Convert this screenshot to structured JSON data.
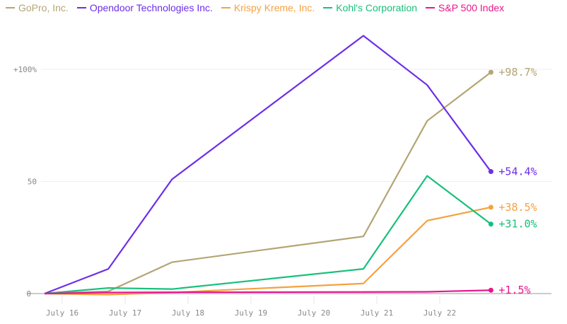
{
  "chart_data": {
    "type": "line",
    "title": "",
    "xlabel": "",
    "ylabel": "",
    "x_ticks": [
      "July 16",
      "July 17",
      "July 18",
      "July 19",
      "July 20",
      "July 21",
      "July 22"
    ],
    "x_tick_days": [
      16,
      17,
      18,
      19,
      20,
      21,
      22
    ],
    "x": [
      15.72,
      16.72,
      17.72,
      20.72,
      21.72,
      22.72
    ],
    "y_ticks": [
      {
        "v": 0,
        "label": "0"
      },
      {
        "v": 50,
        "label": "50"
      },
      {
        "v": 100,
        "label": "+100%"
      }
    ],
    "ylim": [
      -3,
      118
    ],
    "xlim": [
      15.45,
      23.5
    ],
    "grid": true,
    "legend_position": "top-left",
    "series": [
      {
        "name": "GoPro, Inc.",
        "color": "#b4a574",
        "values": [
          0,
          1,
          14,
          25.5,
          77,
          98.7
        ],
        "end_label": "+98.7%"
      },
      {
        "name": "Opendoor Technologies Inc.",
        "color": "#6d2ee8",
        "values": [
          0,
          11,
          51,
          115,
          93,
          54.4
        ],
        "end_label": "+54.4%"
      },
      {
        "name": "Krispy Kreme, Inc.",
        "color": "#f5a13f",
        "values": [
          0,
          -0.5,
          0.5,
          4.5,
          32.5,
          38.5
        ],
        "end_label": "+38.5%"
      },
      {
        "name": "Kohl's Corporation",
        "color": "#17c07b",
        "values": [
          0,
          2.5,
          2,
          11,
          52.5,
          31.0
        ],
        "end_label": "+31.0%"
      },
      {
        "name": "S&P 500 Index",
        "color": "#e8168c",
        "values": [
          0,
          0.5,
          0.6,
          0.7,
          0.8,
          1.5
        ],
        "end_label": "+1.5%"
      }
    ]
  }
}
